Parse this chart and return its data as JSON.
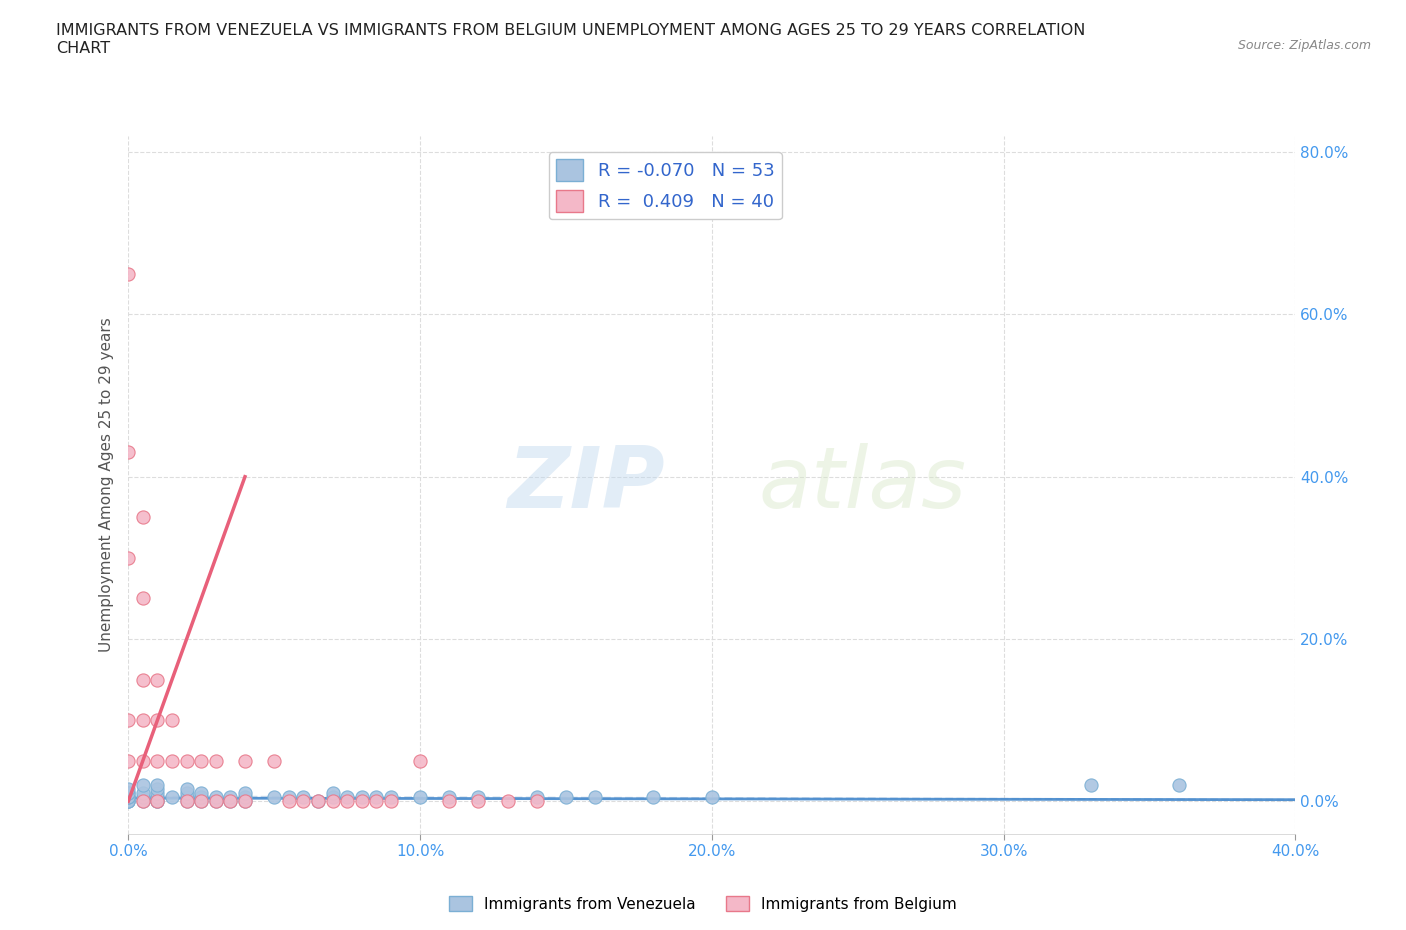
{
  "title": "IMMIGRANTS FROM VENEZUELA VS IMMIGRANTS FROM BELGIUM UNEMPLOYMENT AMONG AGES 25 TO 29 YEARS CORRELATION\nCHART",
  "source_text": "Source: ZipAtlas.com",
  "ylabel": "Unemployment Among Ages 25 to 29 years",
  "xlim": [
    0.0,
    0.4
  ],
  "ylim": [
    -0.04,
    0.82
  ],
  "yticks": [
    0.0,
    0.2,
    0.4,
    0.6,
    0.8
  ],
  "ytick_labels": [
    "0.0%",
    "20.0%",
    "40.0%",
    "60.0%",
    "80.0%"
  ],
  "xticks": [
    0.0,
    0.1,
    0.2,
    0.3,
    0.4
  ],
  "xtick_labels": [
    "0.0%",
    "10.0%",
    "20.0%",
    "30.0%",
    "40.0%"
  ],
  "venezuela_color": "#aac4e0",
  "venezuela_edge": "#7bafd4",
  "belgium_color": "#f4b8c8",
  "belgium_edge": "#e8788a",
  "trend_venezuela_color": "#aac8e8",
  "trend_belgium_color": "#e8607a",
  "legend_R_venezuela": "-0.070",
  "legend_N_venezuela": "53",
  "legend_R_belgium": "0.409",
  "legend_N_belgium": "40",
  "watermark_zip": "ZIP",
  "watermark_atlas": "atlas",
  "venezuela_x": [
    0.0,
    0.0,
    0.0,
    0.0,
    0.0,
    0.0,
    0.0,
    0.0,
    0.005,
    0.005,
    0.005,
    0.005,
    0.01,
    0.01,
    0.01,
    0.01,
    0.01,
    0.01,
    0.015,
    0.02,
    0.02,
    0.02,
    0.02,
    0.025,
    0.025,
    0.025,
    0.03,
    0.03,
    0.035,
    0.035,
    0.04,
    0.04,
    0.04,
    0.05,
    0.055,
    0.06,
    0.065,
    0.07,
    0.07,
    0.075,
    0.08,
    0.085,
    0.09,
    0.1,
    0.11,
    0.12,
    0.14,
    0.15,
    0.16,
    0.18,
    0.2,
    0.33,
    0.36
  ],
  "venezuela_y": [
    0.0,
    0.0,
    0.0,
    0.005,
    0.005,
    0.01,
    0.01,
    0.015,
    0.0,
    0.005,
    0.01,
    0.02,
    0.0,
    0.0,
    0.005,
    0.01,
    0.015,
    0.02,
    0.005,
    0.0,
    0.005,
    0.01,
    0.015,
    0.0,
    0.005,
    0.01,
    0.0,
    0.005,
    0.0,
    0.005,
    0.0,
    0.005,
    0.01,
    0.005,
    0.005,
    0.005,
    0.0,
    0.005,
    0.01,
    0.005,
    0.005,
    0.005,
    0.005,
    0.005,
    0.005,
    0.005,
    0.005,
    0.005,
    0.005,
    0.005,
    0.005,
    0.02,
    0.02
  ],
  "venezuela_trend_x": [
    0.0,
    0.4
  ],
  "venezuela_trend_y": [
    0.006,
    0.002
  ],
  "belgium_x": [
    0.0,
    0.0,
    0.0,
    0.0,
    0.0,
    0.005,
    0.005,
    0.005,
    0.005,
    0.005,
    0.005,
    0.01,
    0.01,
    0.01,
    0.01,
    0.015,
    0.015,
    0.02,
    0.02,
    0.025,
    0.025,
    0.03,
    0.03,
    0.035,
    0.04,
    0.04,
    0.05,
    0.055,
    0.06,
    0.065,
    0.07,
    0.075,
    0.08,
    0.085,
    0.09,
    0.1,
    0.11,
    0.12,
    0.13,
    0.14
  ],
  "belgium_y": [
    0.05,
    0.1,
    0.3,
    0.43,
    0.65,
    0.0,
    0.05,
    0.1,
    0.15,
    0.25,
    0.35,
    0.0,
    0.05,
    0.1,
    0.15,
    0.05,
    0.1,
    0.0,
    0.05,
    0.0,
    0.05,
    0.0,
    0.05,
    0.0,
    0.0,
    0.05,
    0.05,
    0.0,
    0.0,
    0.0,
    0.0,
    0.0,
    0.0,
    0.0,
    0.0,
    0.05,
    0.0,
    0.0,
    0.0,
    0.0
  ],
  "belgium_trend_x": [
    0.0,
    0.04
  ],
  "belgium_trend_y": [
    0.0,
    0.4
  ]
}
